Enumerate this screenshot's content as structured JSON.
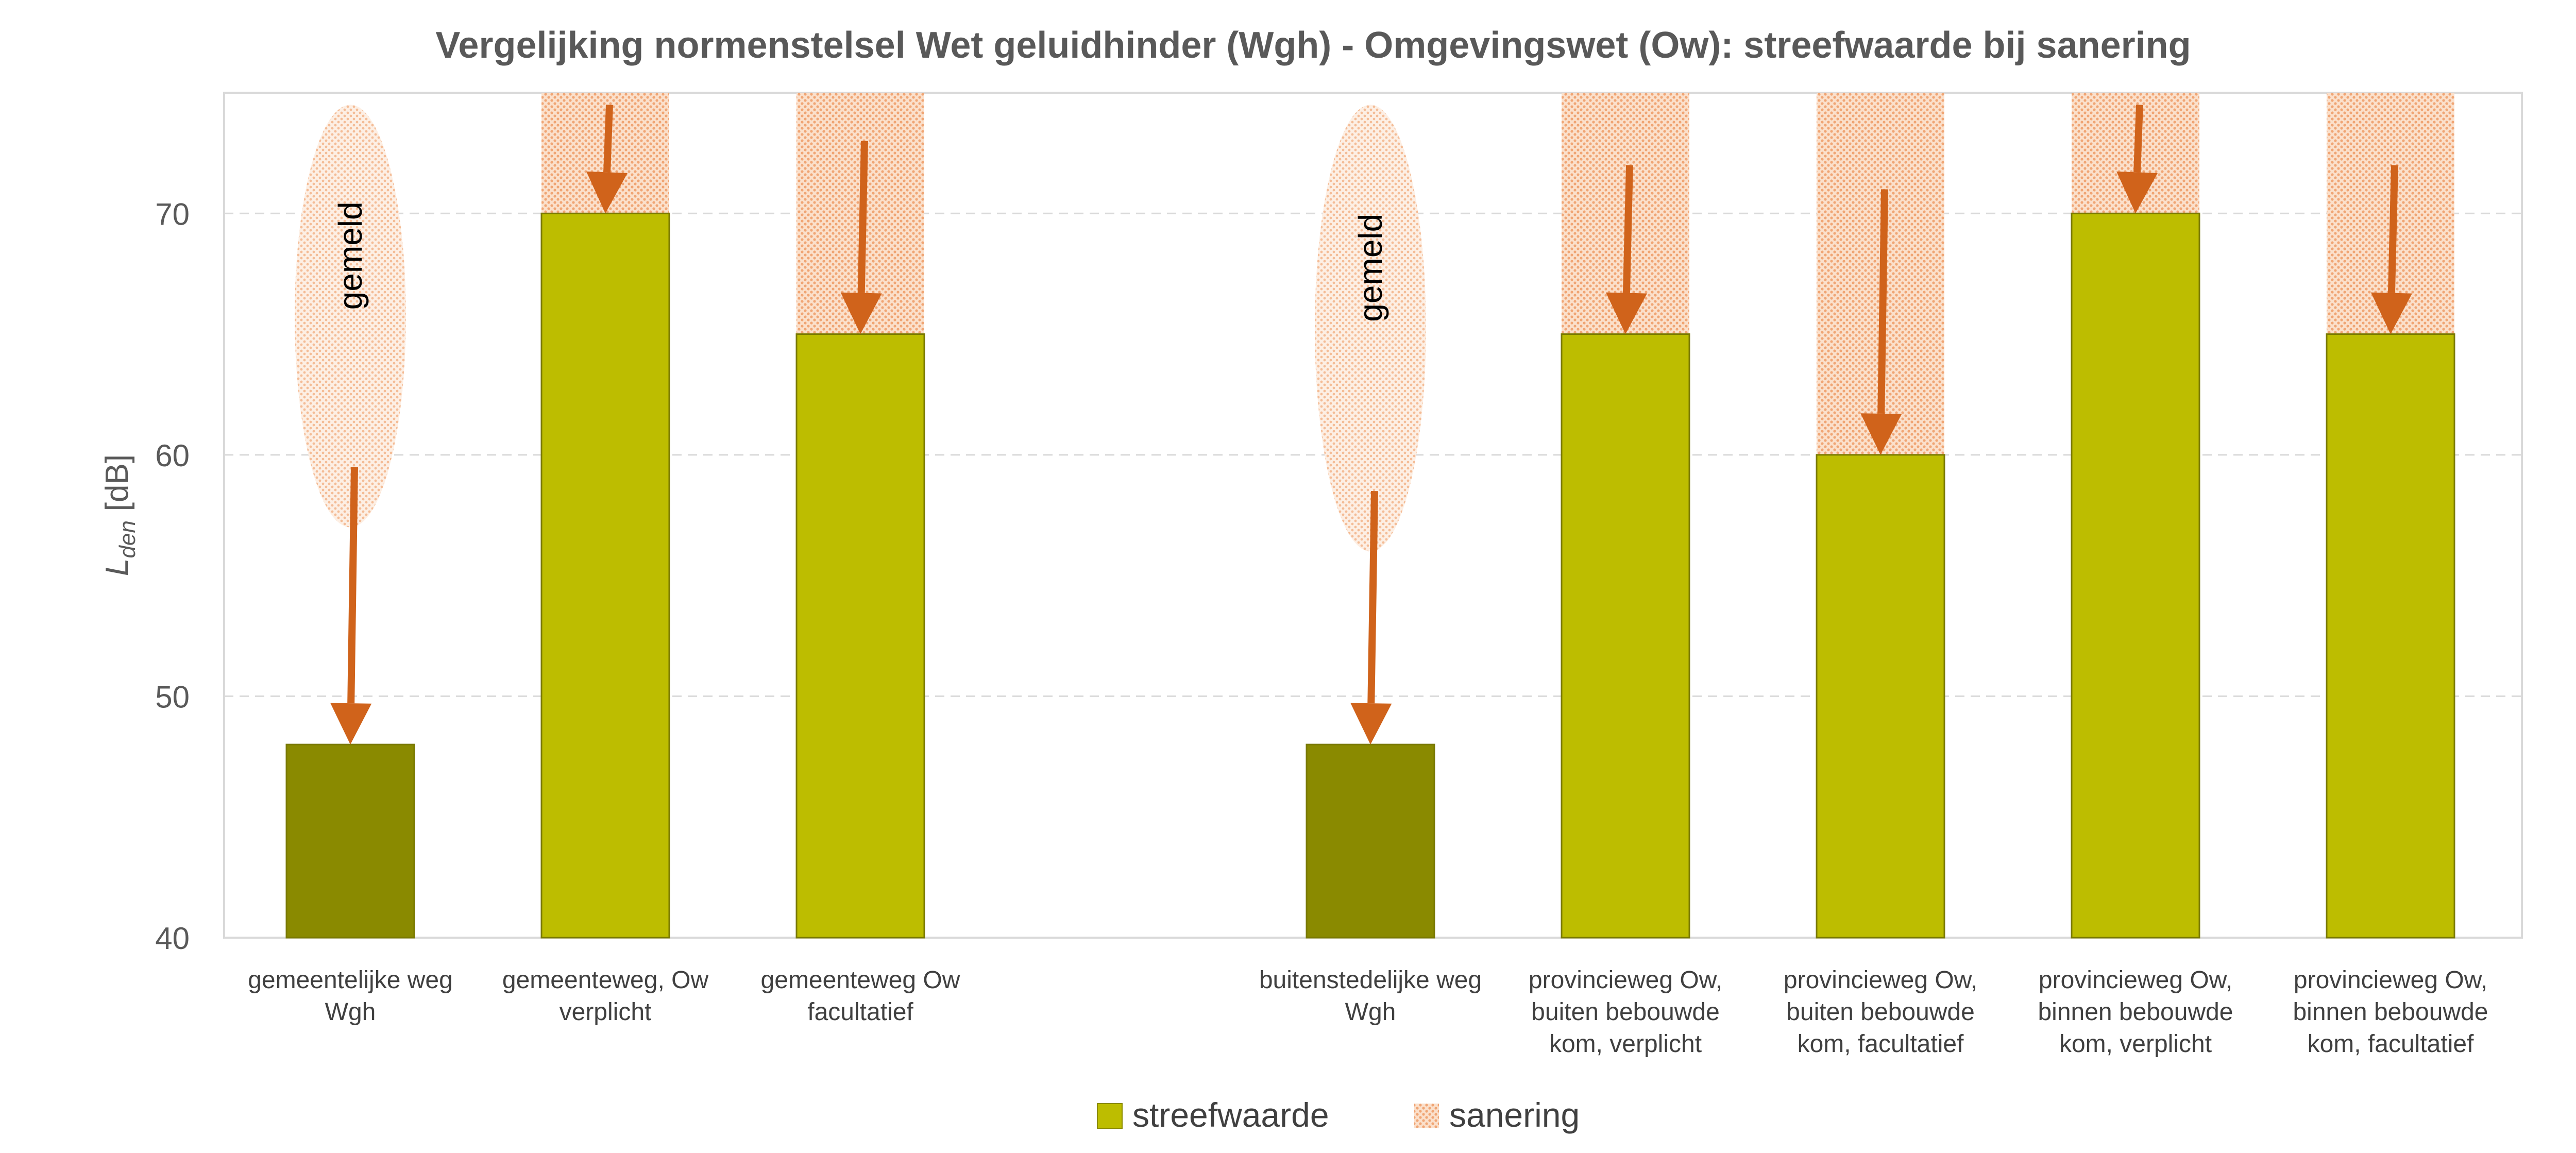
{
  "chart_data": {
    "type": "bar",
    "title": "Vergelijking normenstelsel Wet geluidhinder (Wgh) - Omgevingswet (Ow): streefwaarde bij sanering",
    "ylabel": "L",
    "ylabel_sub": "den",
    "ylabel_unit": "[dB]",
    "ylim": [
      40,
      75
    ],
    "yticks": [
      "40",
      "50",
      "60",
      "70"
    ],
    "grid": true,
    "legend_position": "bottom",
    "colors": {
      "streefwaarde_wgh": "#8A8A00",
      "streefwaarde_ow": "#BDBD00",
      "sanering": "#F4B183",
      "arrow": "#D0631B"
    },
    "categories": [
      [
        "gemeentelijke weg",
        "Wgh"
      ],
      [
        "gemeenteweg, Ow",
        "verplicht"
      ],
      [
        "gemeenteweg Ow",
        "facultatief"
      ],
      [
        "buitenstedelijke weg",
        "Wgh"
      ],
      [
        "provincieweg Ow,",
        "buiten bebouwde",
        "kom, verplicht"
      ],
      [
        "provincieweg Ow,",
        "buiten bebouwde",
        "kom, facultatief"
      ],
      [
        "provincieweg Ow,",
        "binnen bebouwde",
        "kom, verplicht"
      ],
      [
        "provincieweg Ow,",
        "binnen bebouwde",
        "kom, facultatief"
      ]
    ],
    "series": [
      {
        "name": "streefwaarde",
        "values": [
          48,
          70,
          65,
          48,
          65,
          60,
          70,
          65
        ]
      },
      {
        "name": "sanering",
        "values": [
          null,
          [
            70,
            75
          ],
          [
            65,
            75
          ],
          null,
          [
            65,
            75
          ],
          [
            60,
            75
          ],
          [
            70,
            75
          ],
          [
            65,
            75
          ]
        ]
      }
    ],
    "gemeld": [
      {
        "category_index": 0,
        "label": "gemeld",
        "range": [
          57,
          74.5
        ]
      },
      {
        "category_index": 3,
        "label": "gemeld",
        "range": [
          56,
          74.5
        ]
      }
    ],
    "arrows": [
      {
        "category_index": 0,
        "from": 59.5,
        "to": 48
      },
      {
        "category_index": 1,
        "from": 74.5,
        "to": 70
      },
      {
        "category_index": 2,
        "from": 73,
        "to": 65
      },
      {
        "category_index": 3,
        "from": 58.5,
        "to": 48
      },
      {
        "category_index": 4,
        "from": 72,
        "to": 65
      },
      {
        "category_index": 5,
        "from": 71,
        "to": 60
      },
      {
        "category_index": 6,
        "from": 74.5,
        "to": 70
      },
      {
        "category_index": 7,
        "from": 72,
        "to": 65
      }
    ]
  }
}
